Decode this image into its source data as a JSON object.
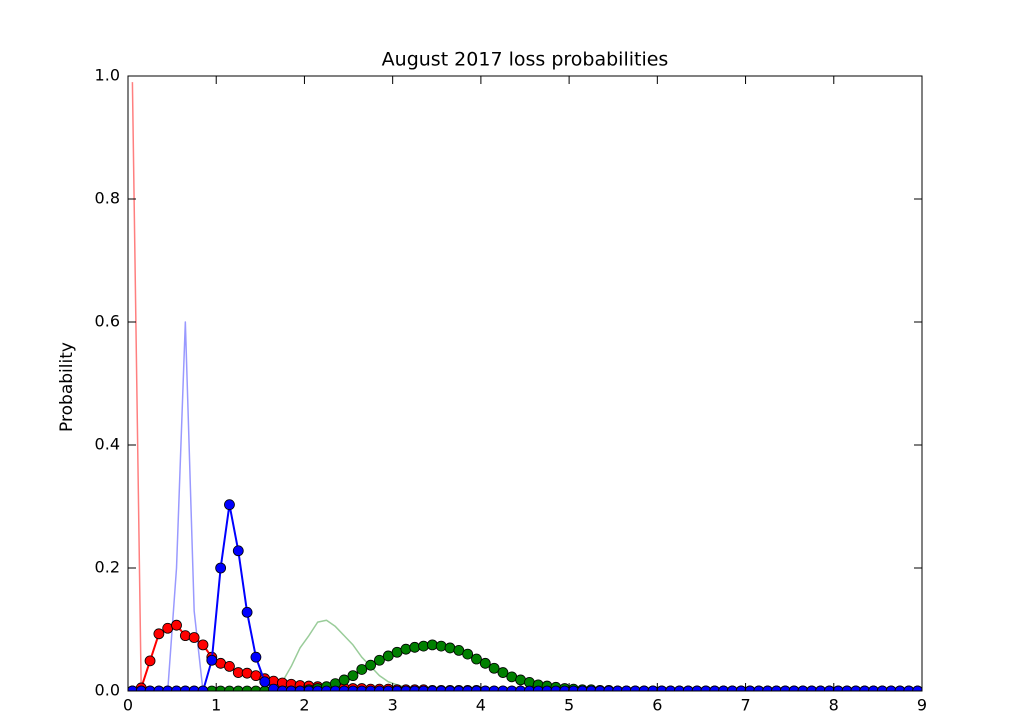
{
  "chart_data": {
    "type": "line",
    "title": "August 2017 loss probabilities",
    "ylabel": "Probability",
    "xlim": [
      0,
      9
    ],
    "ylim": [
      0,
      1
    ],
    "xticks": [
      0,
      1,
      2,
      3,
      4,
      5,
      6,
      7,
      8,
      9
    ],
    "yticks": [
      {
        "value": 0,
        "label": "0.0"
      },
      0.2,
      0.4,
      0.6,
      0.8,
      {
        "value": 1,
        "label": "1.0"
      }
    ],
    "x": [
      0.05,
      0.15,
      0.25,
      0.35,
      0.45,
      0.55,
      0.65,
      0.75,
      0.85,
      0.95,
      1.05,
      1.15,
      1.25,
      1.35,
      1.45,
      1.55,
      1.65,
      1.75,
      1.85,
      1.95,
      2.05,
      2.15,
      2.25,
      2.35,
      2.45,
      2.55,
      2.65,
      2.75,
      2.85,
      2.95,
      3.05,
      3.15,
      3.25,
      3.35,
      3.45,
      3.55,
      3.65,
      3.75,
      3.85,
      3.95,
      4.05,
      4.15,
      4.25,
      4.35,
      4.45,
      4.55,
      4.65,
      4.75,
      4.85,
      4.95,
      5.05,
      5.15,
      5.25,
      5.35,
      5.45,
      5.55,
      5.65,
      5.75,
      5.85,
      5.95,
      6.05,
      6.15,
      6.25,
      6.35,
      6.45,
      6.55,
      6.65,
      6.75,
      6.85,
      6.95,
      7.05,
      7.15,
      7.25,
      7.35,
      7.45,
      7.55,
      7.65,
      7.75,
      7.85,
      7.95,
      8.05,
      8.15,
      8.25,
      8.35,
      8.45,
      8.55,
      8.65,
      8.75,
      8.85,
      8.95
    ],
    "series": [
      {
        "color": "#ff0000",
        "alpha": 0.5,
        "marker": false,
        "values": [
          0.99,
          0,
          0,
          0,
          0,
          0,
          0,
          0,
          0,
          0,
          0,
          0,
          0,
          0,
          0,
          0,
          0,
          0,
          0,
          0,
          0,
          0,
          0,
          0,
          0,
          0,
          0,
          0,
          0,
          0,
          0,
          0,
          0,
          0,
          0,
          0,
          0,
          0,
          0,
          0,
          0,
          0,
          0,
          0,
          0,
          0,
          0,
          0,
          0,
          0,
          0,
          0,
          0,
          0,
          0,
          0,
          0,
          0,
          0,
          0,
          0,
          0,
          0,
          0,
          0,
          0,
          0,
          0,
          0,
          0,
          0,
          0,
          0,
          0,
          0,
          0,
          0,
          0,
          0,
          0,
          0,
          0,
          0,
          0,
          0,
          0,
          0,
          0,
          0,
          0
        ]
      },
      {
        "color": "#0000ff",
        "alpha": 0.4,
        "marker": false,
        "values": [
          0,
          0,
          0,
          0,
          0,
          0.2,
          0.6,
          0.13,
          0,
          0,
          0,
          0,
          0,
          0,
          0,
          0,
          0,
          0,
          0,
          0,
          0,
          0,
          0,
          0,
          0,
          0,
          0,
          0,
          0,
          0,
          0,
          0,
          0,
          0,
          0,
          0,
          0,
          0,
          0,
          0,
          0,
          0,
          0,
          0,
          0,
          0,
          0,
          0,
          0,
          0,
          0,
          0,
          0,
          0,
          0,
          0,
          0,
          0,
          0,
          0,
          0,
          0,
          0,
          0,
          0,
          0,
          0,
          0,
          0,
          0,
          0,
          0,
          0,
          0,
          0,
          0,
          0,
          0,
          0,
          0,
          0,
          0,
          0,
          0,
          0,
          0,
          0,
          0,
          0,
          0
        ]
      },
      {
        "color": "#008000",
        "alpha": 0.4,
        "marker": false,
        "values": [
          0,
          0,
          0,
          0,
          0,
          0,
          0,
          0,
          0,
          0,
          0,
          0,
          0,
          0,
          0,
          0,
          0.003,
          0.015,
          0.04,
          0.07,
          0.09,
          0.112,
          0.115,
          0.105,
          0.09,
          0.075,
          0.055,
          0.04,
          0.025,
          0.015,
          0.01,
          0.006,
          0.003,
          0.002,
          0.001,
          0,
          0,
          0,
          0,
          0,
          0,
          0,
          0,
          0,
          0,
          0,
          0,
          0,
          0,
          0,
          0,
          0,
          0,
          0,
          0,
          0,
          0,
          0,
          0,
          0,
          0,
          0,
          0,
          0,
          0,
          0,
          0,
          0,
          0,
          0,
          0,
          0,
          0,
          0,
          0,
          0,
          0,
          0,
          0,
          0,
          0,
          0,
          0,
          0,
          0,
          0,
          0,
          0,
          0,
          0
        ]
      },
      {
        "color": "#ff0000",
        "alpha": 1,
        "marker": true,
        "values": [
          0,
          0.005,
          0.049,
          0.093,
          0.102,
          0.107,
          0.09,
          0.087,
          0.075,
          0.055,
          0.045,
          0.04,
          0.03,
          0.029,
          0.025,
          0.02,
          0.016,
          0.013,
          0.011,
          0.009,
          0.008,
          0.007,
          0.006,
          0.005,
          0.005,
          0.004,
          0.004,
          0.003,
          0.003,
          0.003,
          0.002,
          0.002,
          0.002,
          0.002,
          0.001,
          0.001,
          0.001,
          0.001,
          0.001,
          0.001,
          0,
          0,
          0,
          0,
          0,
          0,
          0,
          0,
          0,
          0,
          0,
          0,
          0,
          0,
          0,
          0,
          0,
          0,
          0,
          0,
          0,
          0,
          0,
          0,
          0,
          0,
          0,
          0,
          0,
          0,
          0,
          0,
          0,
          0,
          0,
          0,
          0,
          0,
          0,
          0,
          0,
          0,
          0,
          0,
          0,
          0,
          0,
          0,
          0,
          0
        ]
      },
      {
        "color": "#008000",
        "alpha": 1,
        "marker": true,
        "values": [
          0,
          0,
          0,
          0,
          0,
          0,
          0,
          0,
          0,
          0,
          0,
          0,
          0,
          0,
          0,
          0,
          0,
          0,
          0,
          0,
          0.002,
          0.004,
          0.007,
          0.012,
          0.018,
          0.025,
          0.035,
          0.042,
          0.05,
          0.057,
          0.063,
          0.068,
          0.071,
          0.073,
          0.075,
          0.073,
          0.07,
          0.066,
          0.06,
          0.052,
          0.045,
          0.037,
          0.03,
          0.023,
          0.018,
          0.014,
          0.01,
          0.008,
          0.006,
          0.004,
          0.003,
          0.002,
          0.002,
          0.001,
          0.001,
          0,
          0,
          0,
          0,
          0,
          0,
          0,
          0,
          0,
          0,
          0,
          0,
          0,
          0,
          0,
          0,
          0,
          0,
          0,
          0,
          0,
          0,
          0,
          0,
          0,
          0,
          0,
          0,
          0,
          0,
          0,
          0,
          0,
          0,
          0
        ]
      },
      {
        "color": "#0000ff",
        "alpha": 1,
        "marker": true,
        "values": [
          0,
          0,
          0,
          0,
          0,
          0,
          0,
          0,
          0,
          0.05,
          0.2,
          0.303,
          0.228,
          0.128,
          0.055,
          0.015,
          0.003,
          0,
          0,
          0,
          0,
          0,
          0,
          0,
          0,
          0,
          0,
          0,
          0,
          0,
          0,
          0,
          0,
          0,
          0,
          0,
          0,
          0,
          0,
          0,
          0,
          0,
          0,
          0,
          0,
          0,
          0,
          0,
          0,
          0,
          0,
          0,
          0,
          0,
          0,
          0,
          0,
          0,
          0,
          0,
          0,
          0,
          0,
          0,
          0,
          0,
          0,
          0,
          0,
          0,
          0,
          0,
          0,
          0,
          0,
          0,
          0,
          0,
          0,
          0,
          0,
          0,
          0,
          0,
          0,
          0,
          0,
          0,
          0,
          0
        ]
      }
    ]
  }
}
